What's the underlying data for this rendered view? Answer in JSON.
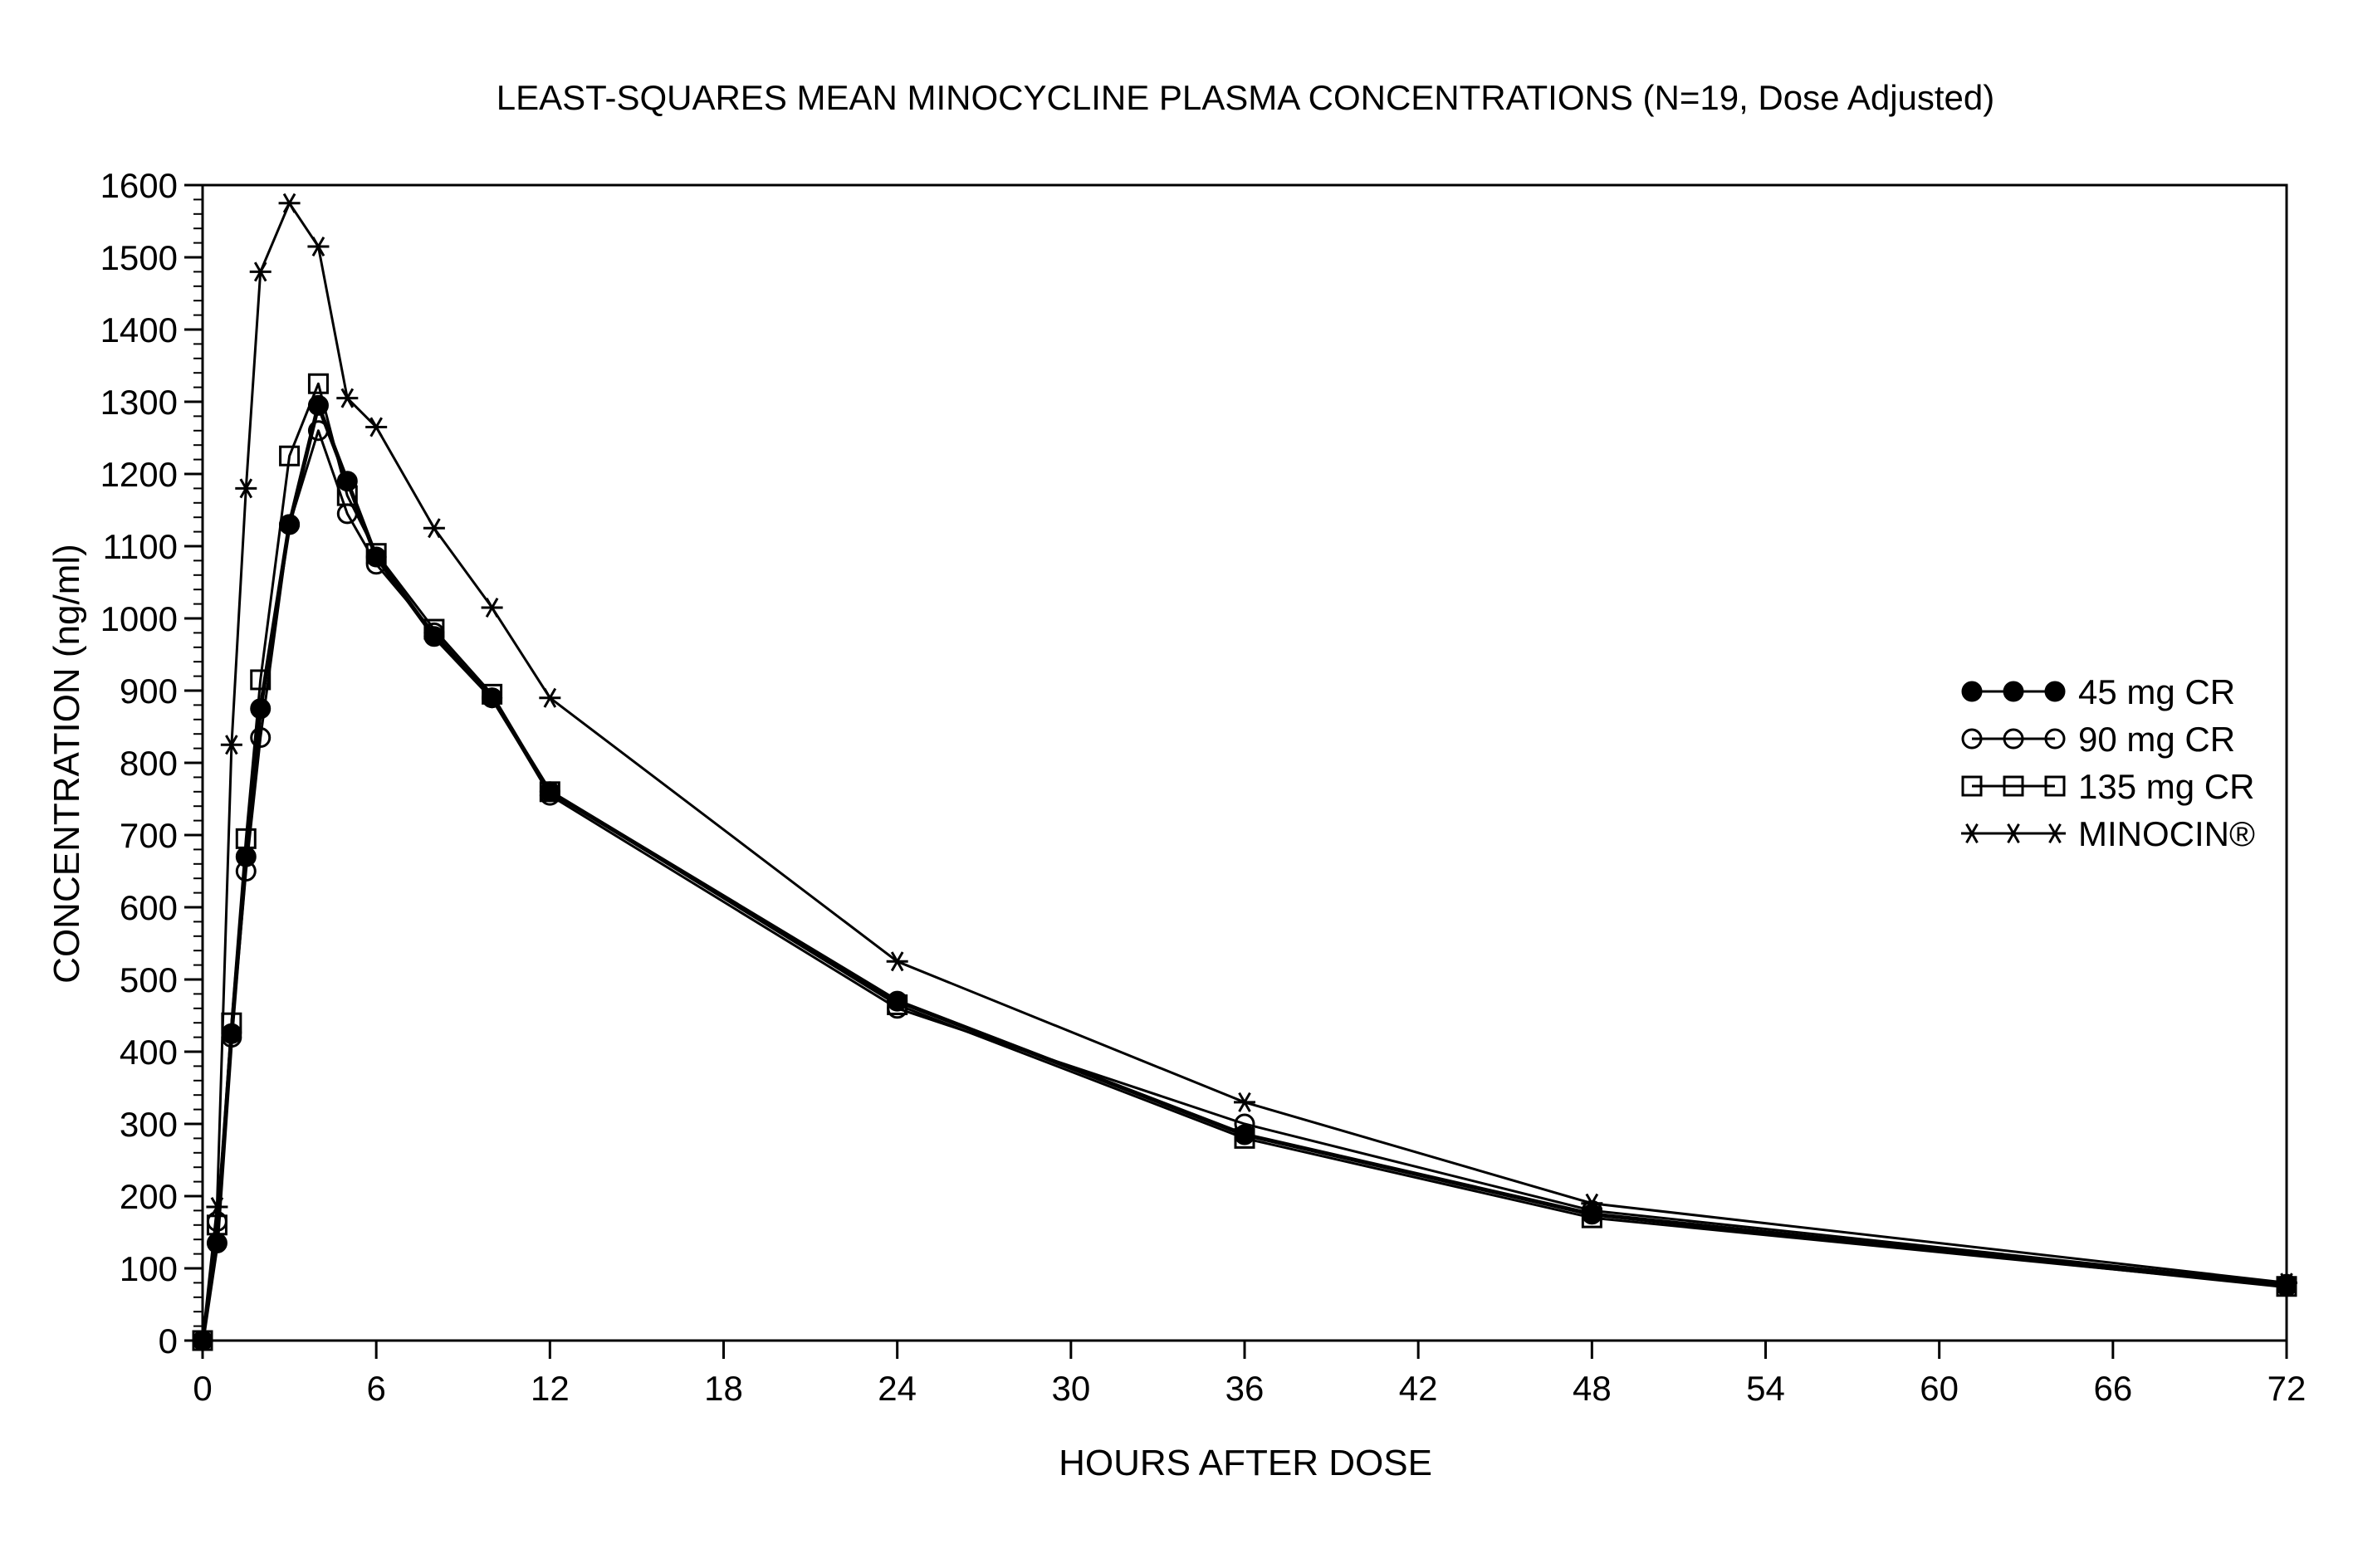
{
  "chart_data": {
    "type": "line",
    "title": "LEAST-SQUARES MEAN MINOCYCLINE PLASMA CONCENTRATIONS (N=19, Dose Adjusted)",
    "xlabel": "HOURS AFTER DOSE",
    "ylabel": "CONCENTRATION (ng/ml)",
    "xlim": [
      0,
      72
    ],
    "ylim": [
      0,
      1600
    ],
    "xticks": [
      0,
      6,
      12,
      18,
      24,
      30,
      36,
      42,
      48,
      54,
      60,
      66,
      72
    ],
    "yticks": [
      0,
      100,
      200,
      300,
      400,
      500,
      600,
      700,
      800,
      900,
      1000,
      1100,
      1200,
      1300,
      1400,
      1500,
      1600
    ],
    "grid": false,
    "legend_position": "right",
    "x": [
      0,
      0.5,
      1,
      1.5,
      2,
      3,
      4,
      5,
      6,
      8,
      10,
      12,
      24,
      36,
      48,
      72
    ],
    "series": [
      {
        "name": "45 mg CR",
        "marker": "filled-circle",
        "values": [
          0,
          135,
          425,
          670,
          875,
          1130,
          1295,
          1190,
          1085,
          975,
          890,
          760,
          470,
          285,
          175,
          75
        ]
      },
      {
        "name": "90 mg CR",
        "marker": "open-circle",
        "values": [
          0,
          165,
          420,
          650,
          835,
          1130,
          1260,
          1145,
          1075,
          980,
          890,
          755,
          460,
          300,
          180,
          78
        ]
      },
      {
        "name": "135 mg CR",
        "marker": "open-square",
        "values": [
          0,
          160,
          440,
          695,
          915,
          1225,
          1325,
          1170,
          1090,
          985,
          895,
          760,
          465,
          280,
          170,
          75
        ]
      },
      {
        "name": "MINOCIN®",
        "marker": "asterisk",
        "values": [
          0,
          185,
          825,
          1180,
          1480,
          1575,
          1515,
          1305,
          1265,
          1125,
          1015,
          890,
          525,
          330,
          190,
          80
        ]
      }
    ]
  }
}
